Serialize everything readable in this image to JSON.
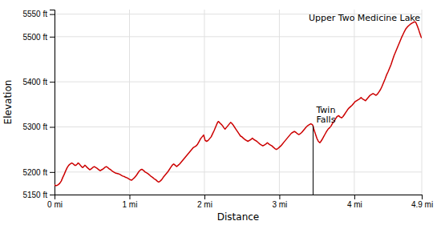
{
  "chart_data": {
    "type": "line",
    "x_label": "Distance",
    "y_label": "Elevation",
    "xlim": [
      0,
      4.9
    ],
    "ylim": [
      5150,
      5560
    ],
    "xticks": [
      {
        "value": 0,
        "label": "0 mi"
      },
      {
        "value": 1,
        "label": "1 mi"
      },
      {
        "value": 2,
        "label": "2 mi"
      },
      {
        "value": 3,
        "label": "3 mi"
      },
      {
        "value": 4,
        "label": "4 mi"
      },
      {
        "value": 4.9,
        "label": "4.9 mi"
      }
    ],
    "yticks": [
      {
        "value": 5150,
        "label": "5150 ft"
      },
      {
        "value": 5200,
        "label": "5200 ft"
      },
      {
        "value": 5300,
        "label": "5300 ft"
      },
      {
        "value": 5400,
        "label": "5400 ft"
      },
      {
        "value": 5500,
        "label": "5500 ft"
      },
      {
        "value": 5550,
        "label": "5550 ft"
      }
    ],
    "grid": true,
    "x": [
      0.0,
      0.015,
      0.03,
      0.05,
      0.07,
      0.09,
      0.11,
      0.13,
      0.15,
      0.17,
      0.19,
      0.21,
      0.23,
      0.25,
      0.27,
      0.285,
      0.3,
      0.315,
      0.33,
      0.345,
      0.36,
      0.375,
      0.39,
      0.405,
      0.42,
      0.435,
      0.45,
      0.47,
      0.49,
      0.51,
      0.53,
      0.55,
      0.57,
      0.59,
      0.61,
      0.63,
      0.65,
      0.67,
      0.69,
      0.71,
      0.73,
      0.75,
      0.77,
      0.79,
      0.81,
      0.83,
      0.85,
      0.87,
      0.89,
      0.91,
      0.93,
      0.95,
      0.97,
      0.99,
      1.01,
      1.03,
      1.05,
      1.07,
      1.09,
      1.11,
      1.13,
      1.15,
      1.165,
      1.175,
      1.19,
      1.21,
      1.23,
      1.25,
      1.27,
      1.29,
      1.31,
      1.33,
      1.35,
      1.37,
      1.385,
      1.395,
      1.41,
      1.43,
      1.45,
      1.47,
      1.49,
      1.51,
      1.53,
      1.55,
      1.57,
      1.59,
      1.61,
      1.63,
      1.65,
      1.67,
      1.69,
      1.71,
      1.73,
      1.75,
      1.77,
      1.79,
      1.81,
      1.83,
      1.85,
      1.87,
      1.89,
      1.91,
      1.93,
      1.95,
      1.97,
      1.99,
      2.01,
      2.03,
      2.05,
      2.07,
      2.09,
      2.11,
      2.13,
      2.15,
      2.17,
      2.185,
      2.195,
      2.21,
      2.23,
      2.245,
      2.26,
      2.275,
      2.29,
      2.31,
      2.33,
      2.35,
      2.365,
      2.38,
      2.4,
      2.42,
      2.44,
      2.46,
      2.48,
      2.5,
      2.52,
      2.54,
      2.56,
      2.58,
      2.6,
      2.62,
      2.64,
      2.66,
      2.68,
      2.7,
      2.72,
      2.74,
      2.76,
      2.78,
      2.8,
      2.82,
      2.84,
      2.86,
      2.88,
      2.9,
      2.92,
      2.94,
      2.96,
      2.98,
      3.0,
      3.02,
      3.04,
      3.06,
      3.08,
      3.1,
      3.12,
      3.14,
      3.16,
      3.18,
      3.2,
      3.22,
      3.24,
      3.26,
      3.28,
      3.3,
      3.32,
      3.34,
      3.36,
      3.38,
      3.4,
      3.42,
      3.44,
      3.45,
      3.46,
      3.48,
      3.5,
      3.52,
      3.54,
      3.555,
      3.57,
      3.59,
      3.61,
      3.63,
      3.65,
      3.67,
      3.69,
      3.71,
      3.73,
      3.75,
      3.77,
      3.79,
      3.81,
      3.83,
      3.85,
      3.87,
      3.89,
      3.91,
      3.93,
      3.95,
      3.97,
      3.99,
      4.01,
      4.03,
      4.05,
      4.07,
      4.09,
      4.11,
      4.13,
      4.15,
      4.17,
      4.19,
      4.21,
      4.23,
      4.25,
      4.27,
      4.29,
      4.31,
      4.33,
      4.35,
      4.37,
      4.39,
      4.41,
      4.43,
      4.45,
      4.47,
      4.49,
      4.51,
      4.53,
      4.55,
      4.57,
      4.59,
      4.61,
      4.63,
      4.65,
      4.67,
      4.69,
      4.71,
      4.73,
      4.75,
      4.77,
      4.79,
      4.81,
      4.82,
      4.83,
      4.845,
      4.86,
      4.875,
      4.89,
      4.9
    ],
    "series": [
      {
        "color": "#cc0000",
        "values": [
          5172,
          5170,
          5170,
          5172,
          5175,
          5180,
          5188,
          5195,
          5203,
          5210,
          5215,
          5218,
          5220,
          5218,
          5215,
          5215,
          5217,
          5220,
          5218,
          5215,
          5212,
          5210,
          5212,
          5215,
          5213,
          5210,
          5208,
          5205,
          5207,
          5210,
          5212,
          5210,
          5208,
          5205,
          5203,
          5205,
          5207,
          5210,
          5212,
          5210,
          5207,
          5205,
          5202,
          5200,
          5198,
          5197,
          5196,
          5195,
          5193,
          5191,
          5190,
          5188,
          5187,
          5185,
          5183,
          5182,
          5185,
          5188,
          5192,
          5197,
          5202,
          5205,
          5206,
          5205,
          5203,
          5200,
          5198,
          5196,
          5193,
          5190,
          5188,
          5185,
          5183,
          5180,
          5178,
          5178,
          5180,
          5183,
          5188,
          5192,
          5196,
          5200,
          5205,
          5210,
          5215,
          5218,
          5215,
          5212,
          5215,
          5218,
          5222,
          5226,
          5230,
          5234,
          5238,
          5242,
          5246,
          5250,
          5254,
          5256,
          5258,
          5262,
          5268,
          5274,
          5278,
          5282,
          5270,
          5268,
          5270,
          5274,
          5278,
          5285,
          5292,
          5300,
          5308,
          5312,
          5311,
          5308,
          5305,
          5302,
          5298,
          5295,
          5298,
          5302,
          5306,
          5310,
          5308,
          5305,
          5300,
          5295,
          5290,
          5285,
          5280,
          5278,
          5275,
          5272,
          5270,
          5268,
          5270,
          5272,
          5275,
          5272,
          5270,
          5268,
          5265,
          5262,
          5260,
          5258,
          5260,
          5262,
          5265,
          5262,
          5260,
          5258,
          5255,
          5252,
          5250,
          5252,
          5255,
          5258,
          5262,
          5266,
          5270,
          5274,
          5278,
          5282,
          5286,
          5288,
          5290,
          5288,
          5285,
          5283,
          5285,
          5288,
          5292,
          5296,
          5300,
          5303,
          5305,
          5307,
          5305,
          5302,
          5295,
          5285,
          5275,
          5268,
          5265,
          5268,
          5272,
          5278,
          5284,
          5290,
          5295,
          5298,
          5302,
          5308,
          5312,
          5318,
          5323,
          5325,
          5322,
          5320,
          5323,
          5328,
          5333,
          5338,
          5342,
          5345,
          5348,
          5352,
          5356,
          5358,
          5360,
          5362,
          5365,
          5362,
          5360,
          5358,
          5362,
          5366,
          5370,
          5372,
          5374,
          5372,
          5370,
          5373,
          5378,
          5383,
          5390,
          5398,
          5406,
          5415,
          5422,
          5430,
          5438,
          5448,
          5458,
          5466,
          5474,
          5482,
          5490,
          5498,
          5505,
          5512,
          5518,
          5522,
          5525,
          5528,
          5530,
          5532,
          5533,
          5532,
          5528,
          5522,
          5515,
          5507,
          5500,
          5497
        ]
      }
    ],
    "annotations": [
      {
        "type": "vline",
        "text": "Twin\nFalls",
        "x": 3.45,
        "y": 5302
      },
      {
        "type": "text",
        "text": "Upper Two Medicine Lake",
        "x": 4.88,
        "y": 5552
      }
    ]
  }
}
